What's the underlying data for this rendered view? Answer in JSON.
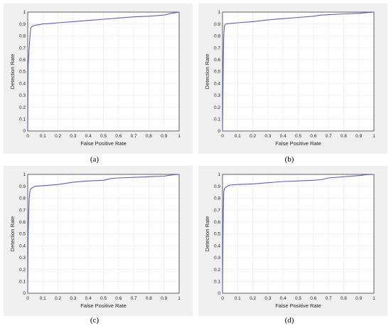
{
  "colors": {
    "line": "#5b5bd6",
    "grid": "#dedede",
    "axis": "#262626",
    "panel_bg": "#f0f0f0"
  },
  "chart_data": [
    {
      "type": "line",
      "caption": "(a)",
      "xlabel": "False Positive Rate",
      "ylabel": "Detection Rate",
      "xlim": [
        0,
        1
      ],
      "ylim": [
        0,
        1
      ],
      "xticks": [
        "0",
        "0.1",
        "0.2",
        "0.3",
        "0.4",
        "0.5",
        "0.6",
        "0.7",
        "0.8",
        "0.9",
        "1"
      ],
      "yticks": [
        "0",
        "0.1",
        "0.2",
        "0.3",
        "0.4",
        "0.5",
        "0.6",
        "0.7",
        "0.8",
        "0.9",
        "1"
      ],
      "grid": true,
      "x": [
        0,
        0.003,
        0.006,
        0.01,
        0.015,
        0.02,
        0.03,
        0.05,
        0.1,
        0.15,
        0.2,
        0.3,
        0.4,
        0.5,
        0.6,
        0.7,
        0.8,
        0.9,
        0.95,
        1.0
      ],
      "y": [
        0,
        0.55,
        0.62,
        0.7,
        0.8,
        0.87,
        0.88,
        0.89,
        0.9,
        0.905,
        0.91,
        0.92,
        0.93,
        0.94,
        0.95,
        0.96,
        0.965,
        0.975,
        0.99,
        1.0
      ]
    },
    {
      "type": "line",
      "caption": "(b)",
      "xlabel": "False Positive Rate",
      "ylabel": "Detection Rate",
      "xlim": [
        0,
        1
      ],
      "ylim": [
        0,
        1
      ],
      "xticks": [
        "0",
        "0.1",
        "0.2",
        "0.3",
        "0.4",
        "0.5",
        "0.6",
        "0.7",
        "0.8",
        "0.9",
        "1"
      ],
      "yticks": [
        "0",
        "0.1",
        "0.2",
        "0.3",
        "0.4",
        "0.5",
        "0.6",
        "0.7",
        "0.8",
        "0.9",
        "1"
      ],
      "grid": true,
      "x": [
        0,
        0.002,
        0.005,
        0.008,
        0.012,
        0.02,
        0.05,
        0.1,
        0.15,
        0.2,
        0.3,
        0.4,
        0.5,
        0.6,
        0.65,
        0.7,
        0.8,
        0.9,
        0.95,
        1.0
      ],
      "y": [
        0,
        0.2,
        0.6,
        0.8,
        0.88,
        0.9,
        0.905,
        0.91,
        0.915,
        0.92,
        0.935,
        0.945,
        0.955,
        0.965,
        0.975,
        0.978,
        0.985,
        0.99,
        0.995,
        1.0
      ]
    },
    {
      "type": "line",
      "caption": "(c)",
      "xlabel": "False Positive Rate",
      "ylabel": "Detection Rate",
      "xlim": [
        0,
        1
      ],
      "ylim": [
        0,
        1
      ],
      "xticks": [
        "0",
        "0.1",
        "0.2",
        "0.3",
        "0.4",
        "0.5",
        "0.6",
        "0.7",
        "0.8",
        "0.9",
        "1"
      ],
      "yticks": [
        "0",
        "0.1",
        "0.2",
        "0.3",
        "0.4",
        "0.5",
        "0.6",
        "0.7",
        "0.8",
        "0.9",
        "1"
      ],
      "grid": true,
      "x": [
        0,
        0.003,
        0.006,
        0.01,
        0.015,
        0.02,
        0.05,
        0.1,
        0.2,
        0.3,
        0.4,
        0.5,
        0.55,
        0.6,
        0.7,
        0.8,
        0.9,
        0.95,
        1.0
      ],
      "y": [
        0,
        0.5,
        0.65,
        0.8,
        0.86,
        0.88,
        0.9,
        0.905,
        0.915,
        0.935,
        0.945,
        0.95,
        0.965,
        0.97,
        0.975,
        0.98,
        0.985,
        0.995,
        1.0
      ]
    },
    {
      "type": "line",
      "caption": "(d)",
      "xlabel": "False Positive Rate",
      "ylabel": "Detection Rate",
      "xlim": [
        0,
        1
      ],
      "ylim": [
        0,
        1
      ],
      "xticks": [
        "0",
        "0.1",
        "0.2",
        "0.3",
        "0.4",
        "0.5",
        "0.6",
        "0.7",
        "0.8",
        "0.9",
        "1"
      ],
      "yticks": [
        "0",
        "0.1",
        "0.2",
        "0.3",
        "0.4",
        "0.5",
        "0.6",
        "0.7",
        "0.8",
        "0.9",
        "1"
      ],
      "grid": true,
      "x": [
        0,
        0.002,
        0.005,
        0.008,
        0.012,
        0.02,
        0.03,
        0.05,
        0.1,
        0.2,
        0.3,
        0.4,
        0.5,
        0.6,
        0.65,
        0.7,
        0.8,
        0.9,
        0.95,
        1.0
      ],
      "y": [
        0,
        0.3,
        0.7,
        0.85,
        0.88,
        0.89,
        0.9,
        0.91,
        0.915,
        0.92,
        0.93,
        0.94,
        0.945,
        0.95,
        0.955,
        0.97,
        0.98,
        0.99,
        0.997,
        1.0
      ]
    }
  ]
}
